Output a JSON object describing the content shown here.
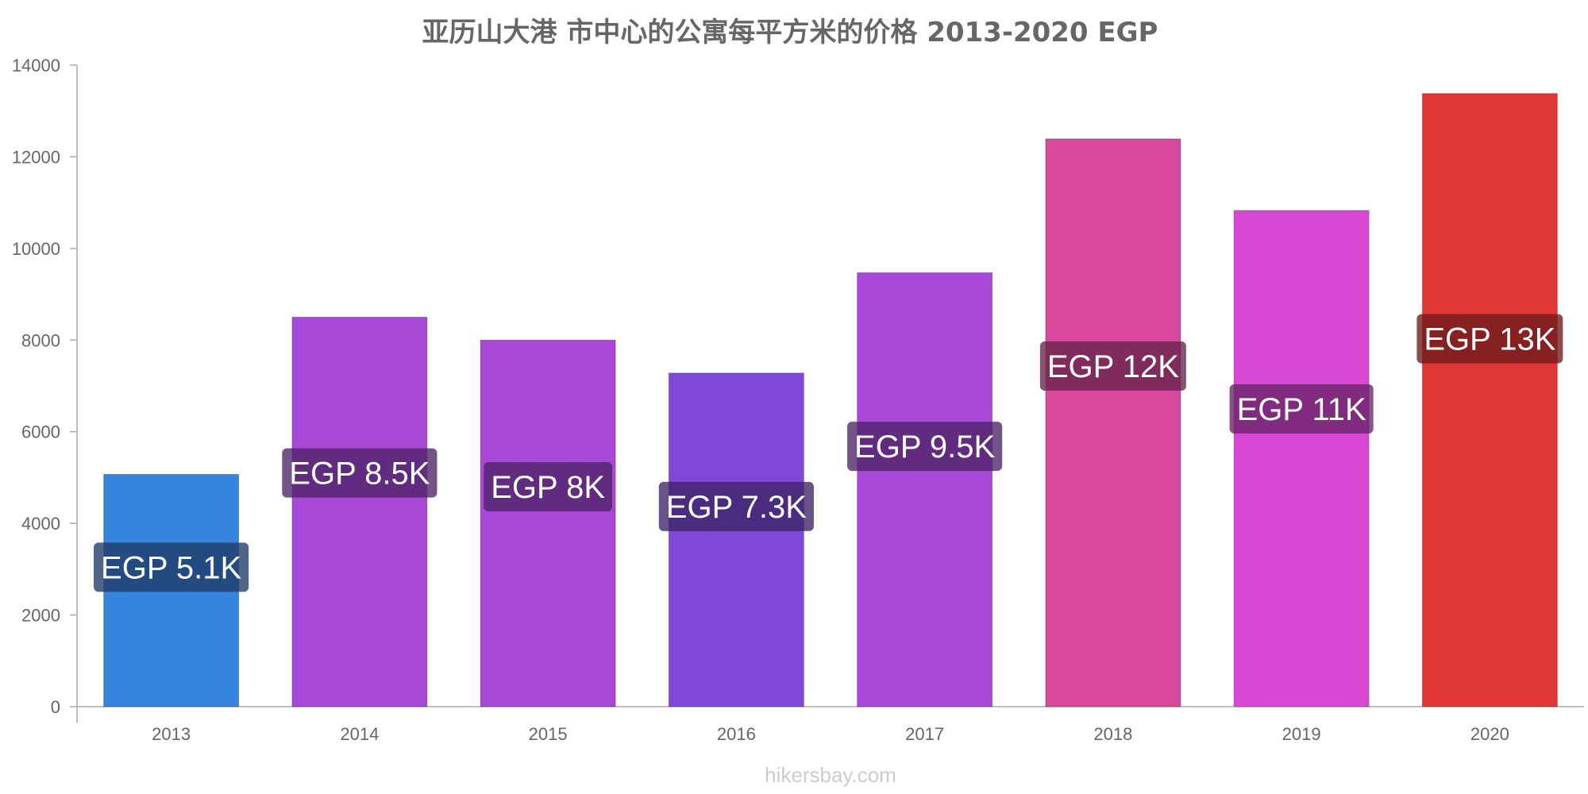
{
  "chart_data": {
    "type": "bar",
    "title": "亚历山大港 市中心的公寓每平方米的价格 2013-2020 EGP",
    "xlabel": "",
    "ylabel": "",
    "categories": [
      "2013",
      "2014",
      "2015",
      "2016",
      "2017",
      "2018",
      "2019",
      "2020"
    ],
    "values": [
      5070,
      8500,
      8000,
      7280,
      9470,
      12390,
      10830,
      13380
    ],
    "data_labels": [
      "EGP 5.1K",
      "EGP 8.5K",
      "EGP 8K",
      "EGP 7.3K",
      "EGP 9.5K",
      "EGP 12K",
      "EGP 11K",
      "EGP 13K"
    ],
    "bar_colors": [
      "#3584de",
      "#a848d8",
      "#a848d8",
      "#8048d8",
      "#a848d8",
      "#d8489c",
      "#d848d4",
      "#e03636"
    ],
    "label_box_colors": [
      "#1f3b66",
      "#4d2266",
      "#4d2266",
      "#3c2266",
      "#4d2266",
      "#66224a",
      "#662266",
      "#6e1a1a"
    ],
    "ylim": [
      0,
      14000
    ],
    "yticks": [
      0,
      2000,
      4000,
      6000,
      8000,
      10000,
      12000,
      14000
    ],
    "grid": false,
    "legend": "none"
  },
  "watermark": "hikersbay.com"
}
